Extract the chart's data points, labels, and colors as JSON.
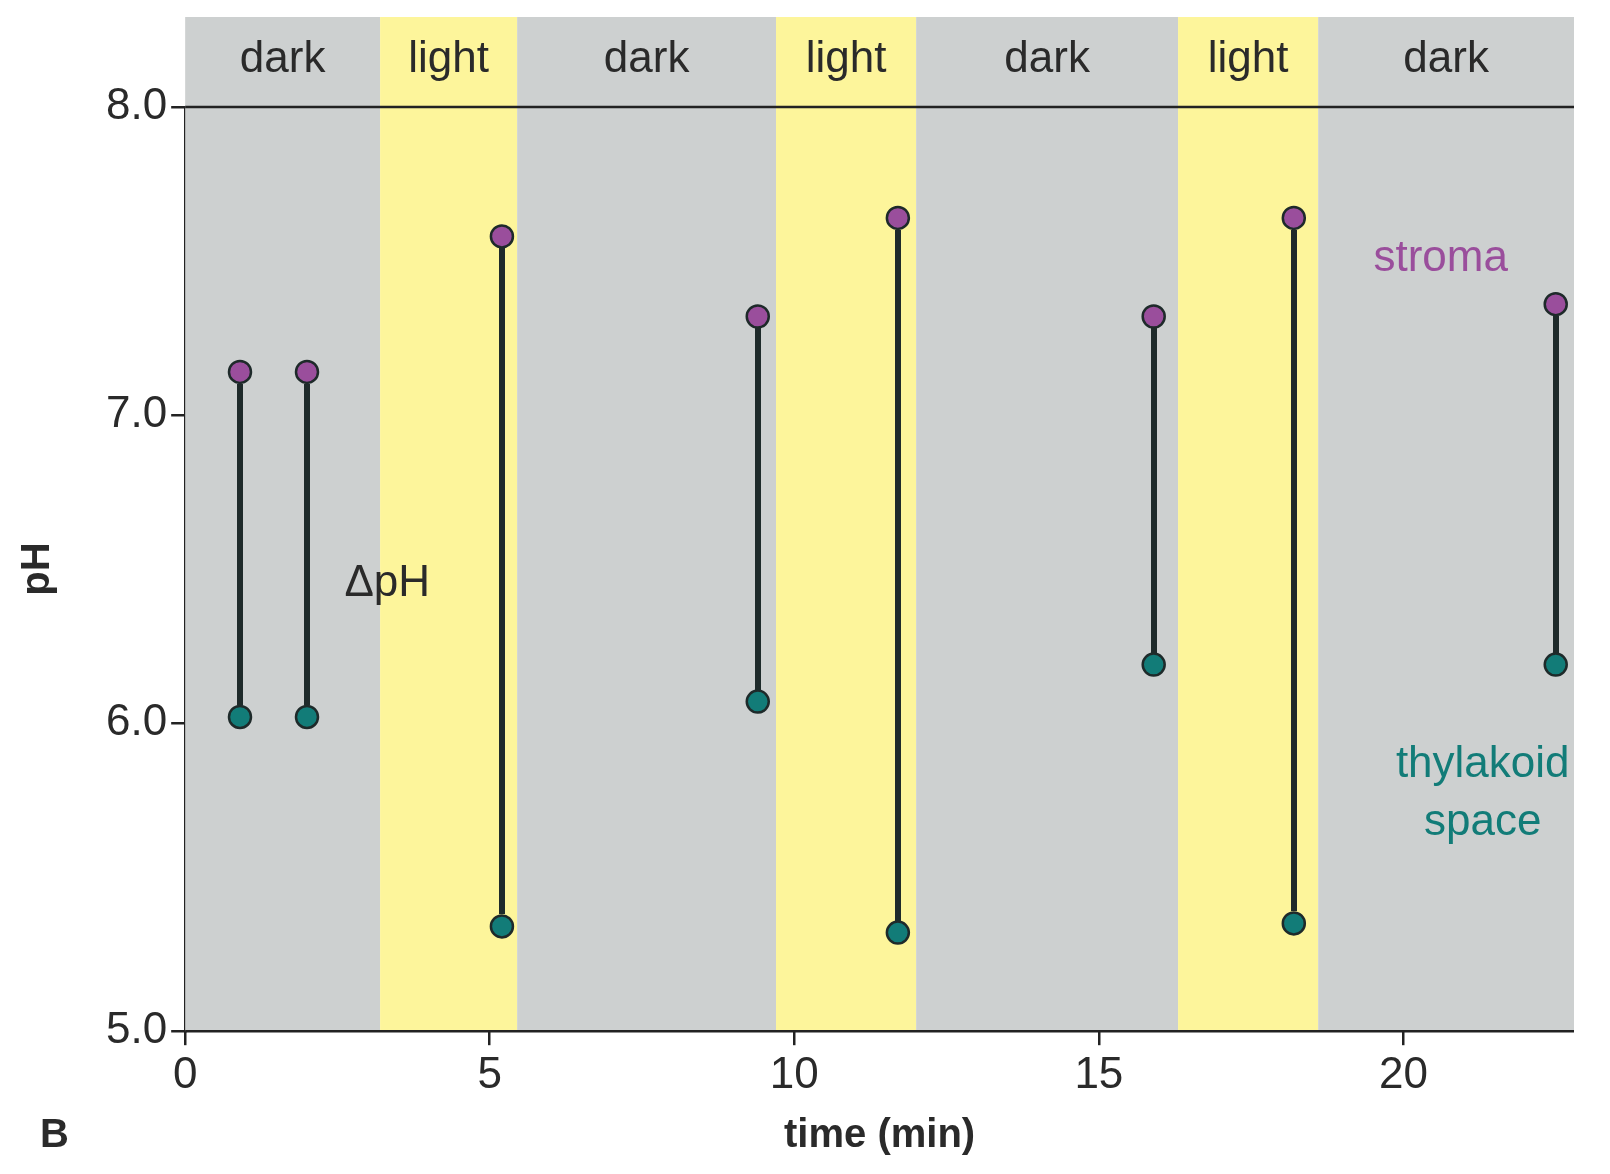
{
  "chart_data": {
    "type": "scatter",
    "xlabel": "time (min)",
    "ylabel": "pH",
    "x": [
      0.9,
      2.0,
      5.2,
      9.4,
      11.7,
      15.9,
      18.2,
      22.5
    ],
    "series": [
      {
        "name": "stroma",
        "color": "#9a4e9c",
        "values": [
          7.14,
          7.14,
          7.58,
          7.32,
          7.64,
          7.32,
          7.64,
          7.36
        ]
      },
      {
        "name": "thylakoid space",
        "color": "#127c78",
        "values": [
          6.02,
          6.02,
          5.34,
          6.07,
          5.32,
          6.19,
          5.35,
          6.19
        ]
      }
    ],
    "xlim": [
      0,
      22.8
    ],
    "xticks": [
      0,
      5,
      10,
      15,
      20
    ],
    "ylim": [
      5.0,
      8.0
    ],
    "yticks": [
      {
        "value": 5,
        "label": "5.0"
      },
      {
        "value": 6,
        "label": "6.0"
      },
      {
        "value": 7,
        "label": "7.0"
      },
      {
        "value": 8,
        "label": "8.0"
      }
    ],
    "bands": [
      {
        "axis": "x",
        "from": 0,
        "to": 3.2,
        "label": "dark",
        "color": "#cdd0d0"
      },
      {
        "axis": "x",
        "from": 3.2,
        "to": 5.45,
        "label": "light",
        "color": "#fdf59b"
      },
      {
        "axis": "x",
        "from": 5.45,
        "to": 9.7,
        "label": "dark",
        "color": "#cdd0d0"
      },
      {
        "axis": "x",
        "from": 9.7,
        "to": 12.0,
        "label": "light",
        "color": "#fdf59b"
      },
      {
        "axis": "x",
        "from": 12.0,
        "to": 16.3,
        "label": "dark",
        "color": "#cdd0d0"
      },
      {
        "axis": "x",
        "from": 16.3,
        "to": 18.6,
        "label": "light",
        "color": "#fdf59b"
      },
      {
        "axis": "x",
        "from": 18.6,
        "to": 22.8,
        "label": "dark",
        "color": "#cdd0d0"
      }
    ],
    "annotations": [
      "ΔpH",
      "B"
    ],
    "marker": "circle",
    "grid": false,
    "legend": false
  }
}
